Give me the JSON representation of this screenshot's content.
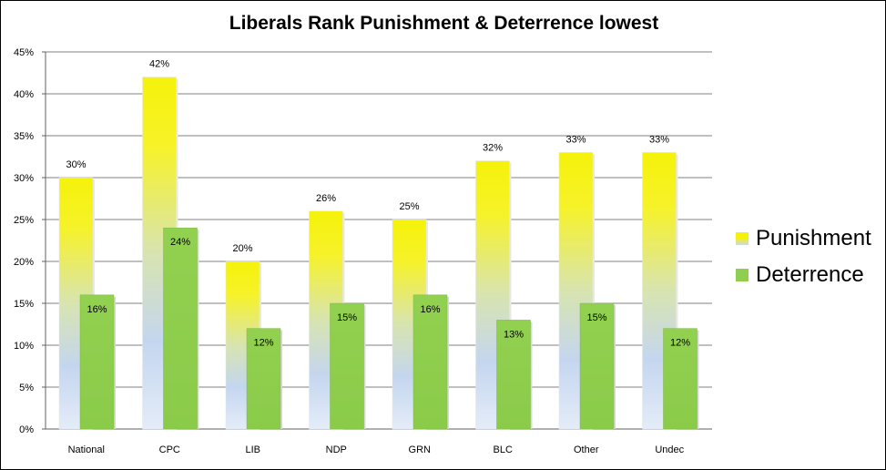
{
  "chart_data": {
    "type": "bar",
    "title": "Liberals Rank Punishment & Deterrence lowest",
    "categories": [
      "National",
      "CPC",
      "LIB",
      "NDP",
      "GRN",
      "BLC",
      "Other",
      "Undec"
    ],
    "series": [
      {
        "name": "Punishment",
        "values": [
          30,
          42,
          20,
          26,
          25,
          32,
          33,
          33
        ],
        "labels": [
          "30%",
          "42%",
          "20%",
          "26%",
          "25%",
          "32%",
          "33%",
          "33%"
        ]
      },
      {
        "name": "Deterrence",
        "values": [
          16,
          24,
          12,
          15,
          16,
          13,
          15,
          12
        ],
        "labels": [
          "16%",
          "24%",
          "12%",
          "15%",
          "16%",
          "13%",
          "15%",
          "12%"
        ]
      }
    ],
    "y_ticks": [
      "0%",
      "5%",
      "10%",
      "15%",
      "20%",
      "25%",
      "30%",
      "35%",
      "40%",
      "45%"
    ],
    "ylim": [
      0,
      45
    ],
    "grid": true,
    "legend_position": "right",
    "colors": {
      "punishment_top": "#f5f20a",
      "punishment_bottom": "#c8d8f0",
      "deterrence": "#8fce4f",
      "grid": "#808080"
    }
  }
}
